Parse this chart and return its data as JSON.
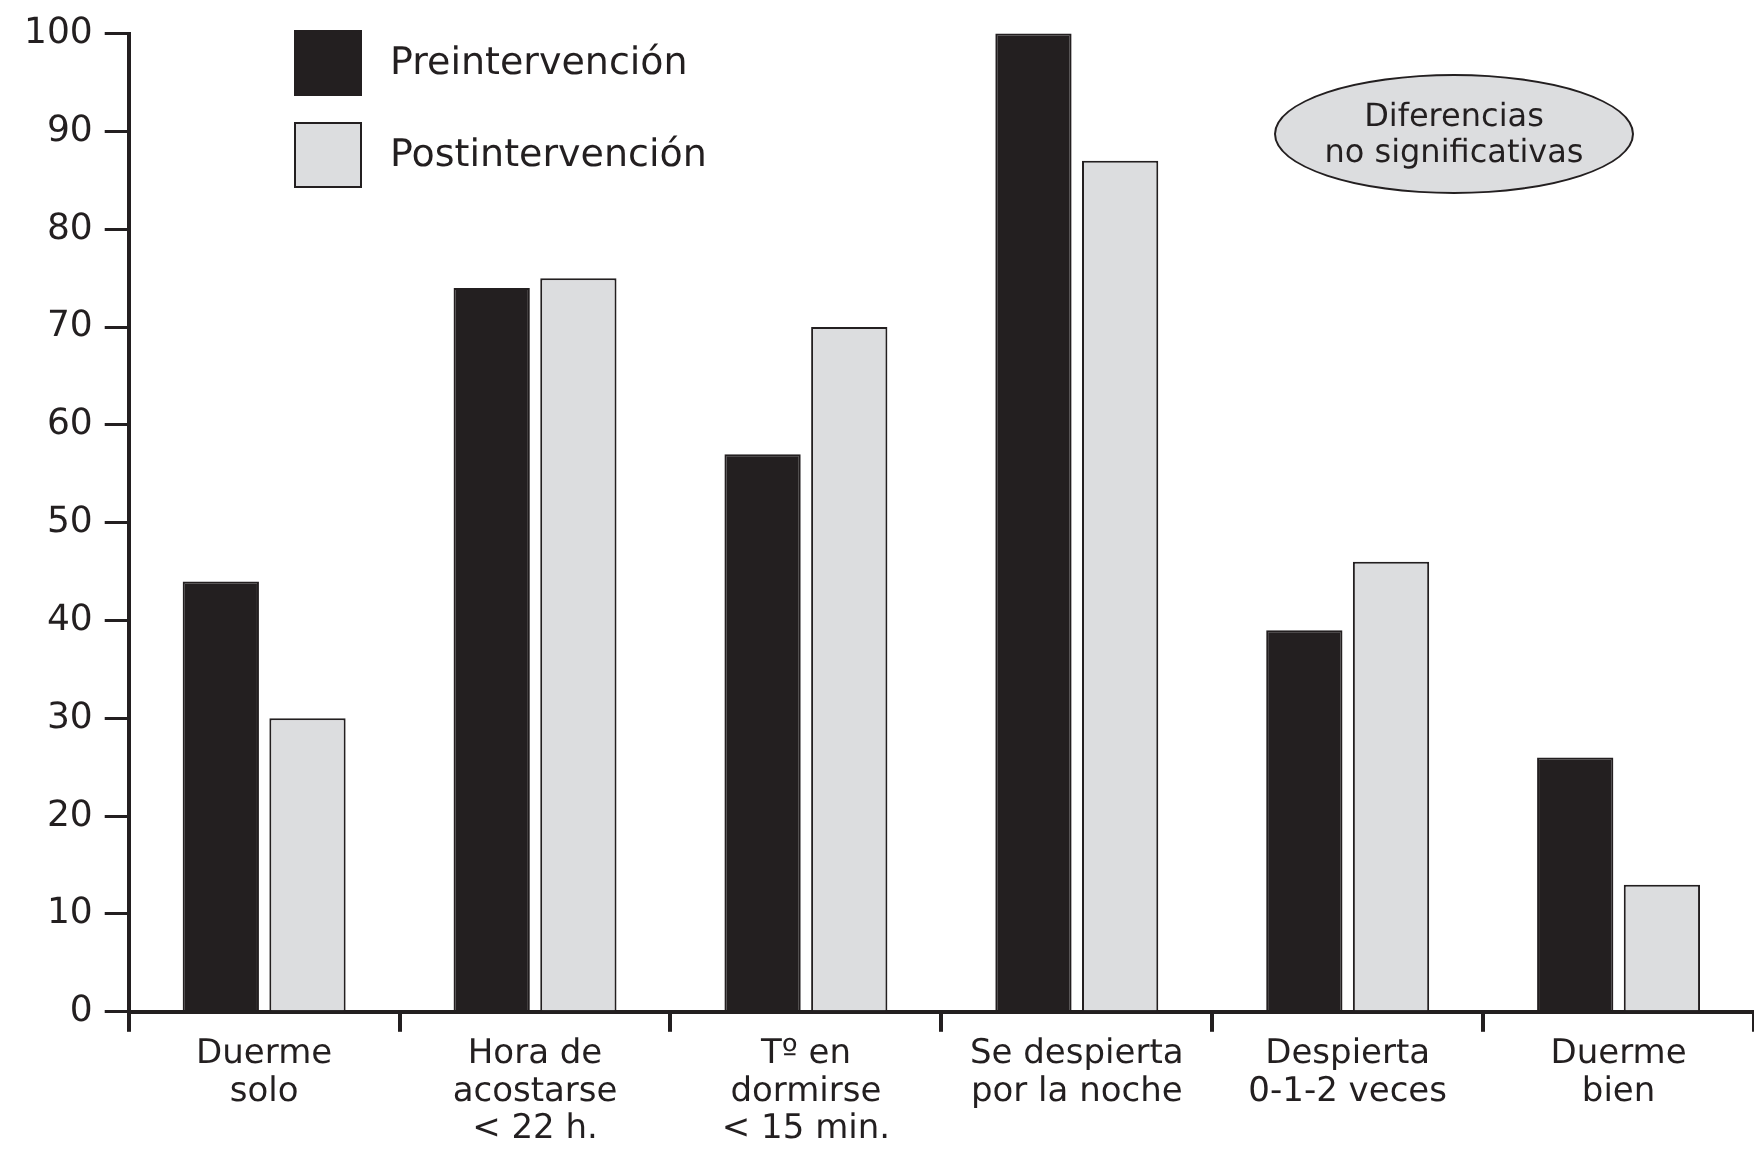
{
  "chart_data": {
    "type": "bar",
    "categories": [
      "Duerme\nsolo",
      "Hora de\nacostarse\n< 22 h.",
      "Tº en\ndormirse\n< 15 min.",
      "Se despierta\npor la noche",
      "Despierta\n0-1-2 veces",
      "Duerme\nbien"
    ],
    "series": [
      {
        "name": "Preintervención",
        "color": "#231f20",
        "values": [
          44,
          74,
          57,
          100,
          39,
          26
        ]
      },
      {
        "name": "Postintervención",
        "color": "#dcdddf",
        "values": [
          30,
          75,
          70,
          87,
          46,
          13
        ]
      }
    ],
    "ylim": [
      0,
      100
    ],
    "yticks": [
      0,
      10,
      20,
      30,
      40,
      50,
      60,
      70,
      80,
      90,
      100
    ],
    "grid": false,
    "legend": "top left",
    "annotations": [
      "Diferencias\nno significativas"
    ]
  }
}
